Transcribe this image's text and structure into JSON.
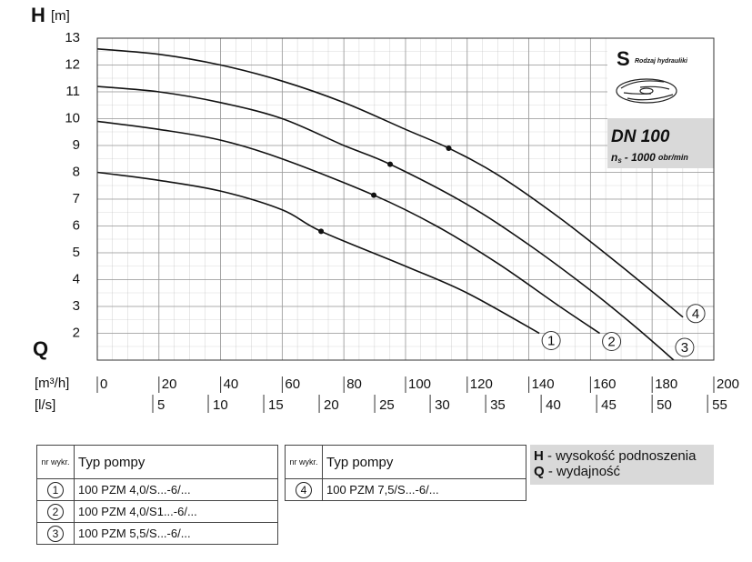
{
  "chart_data": {
    "type": "line",
    "y_symbol": "H",
    "y_unit": "[m]",
    "x_symbol": "Q",
    "x_unit": "[m³/h]",
    "x2_unit": "[l/s]",
    "ylim": [
      1,
      13
    ],
    "yticks": [
      2,
      3,
      4,
      5,
      6,
      7,
      8,
      9,
      10,
      11,
      12,
      13
    ],
    "xlim": [
      0,
      200
    ],
    "xticks": [
      0,
      20,
      40,
      60,
      80,
      100,
      120,
      140,
      160,
      180,
      200
    ],
    "x2lim": [
      0,
      55.56
    ],
    "x2ticks": [
      5,
      10,
      15,
      20,
      25,
      30,
      35,
      40,
      45,
      50,
      55
    ],
    "grid": true,
    "series": [
      {
        "name": "1",
        "color": "#111111",
        "x": [
          0,
          20,
          40,
          60,
          72.6,
          100,
          120,
          143.4
        ],
        "values": [
          8.0,
          7.7,
          7.3,
          6.6,
          5.8,
          4.5,
          3.5,
          2.0
        ],
        "point_x": 72.6,
        "point_y": 5.8
      },
      {
        "name": "2",
        "color": "#111111",
        "x": [
          0,
          20,
          40,
          60,
          89.7,
          110,
          130,
          150,
          163
        ],
        "values": [
          9.9,
          9.6,
          9.2,
          8.5,
          7.15,
          6.0,
          4.6,
          3.0,
          2.0
        ],
        "point_x": 89.7,
        "point_y": 7.15
      },
      {
        "name": "3",
        "color": "#111111",
        "x": [
          0,
          20,
          40,
          60,
          80,
          95,
          120,
          140,
          160,
          175,
          187
        ],
        "values": [
          11.2,
          11.0,
          10.6,
          10.0,
          9.0,
          8.3,
          6.8,
          5.3,
          3.6,
          2.2,
          1.0
        ],
        "point_x": 95,
        "point_y": 8.3
      },
      {
        "name": "4",
        "color": "#111111",
        "x": [
          0,
          20,
          40,
          60,
          80,
          100,
          114,
          130,
          150,
          170,
          190
        ],
        "values": [
          12.6,
          12.4,
          12.0,
          11.4,
          10.6,
          9.6,
          8.9,
          7.9,
          6.3,
          4.5,
          2.6
        ],
        "point_x": 114,
        "point_y": 8.9
      }
    ],
    "info": {
      "hydraulics_symbol": "S",
      "hydraulics_label": "Rodzaj hydrauliki",
      "dn": "DN 100",
      "speed_symbol": "n",
      "speed_subscript": "s",
      "speed_value": "- 1000",
      "speed_unit": "obr/min"
    }
  },
  "tables": [
    {
      "header": [
        "nr wykr.",
        "Typ pompy"
      ],
      "rows": [
        [
          "1",
          "100 PZM 4,0/S...-6/..."
        ],
        [
          "2",
          "100 PZM 4,0/S1...-6/..."
        ],
        [
          "3",
          "100 PZM 5,5/S...-6/..."
        ]
      ]
    },
    {
      "header": [
        "nr wykr.",
        "Typ pompy"
      ],
      "rows": [
        [
          "4",
          "100 PZM 7,5/S...-6/..."
        ]
      ]
    }
  ],
  "legend": [
    {
      "symbol": "H",
      "text": "- wysokość podnoszenia"
    },
    {
      "symbol": "Q",
      "text": "- wydajność"
    }
  ]
}
